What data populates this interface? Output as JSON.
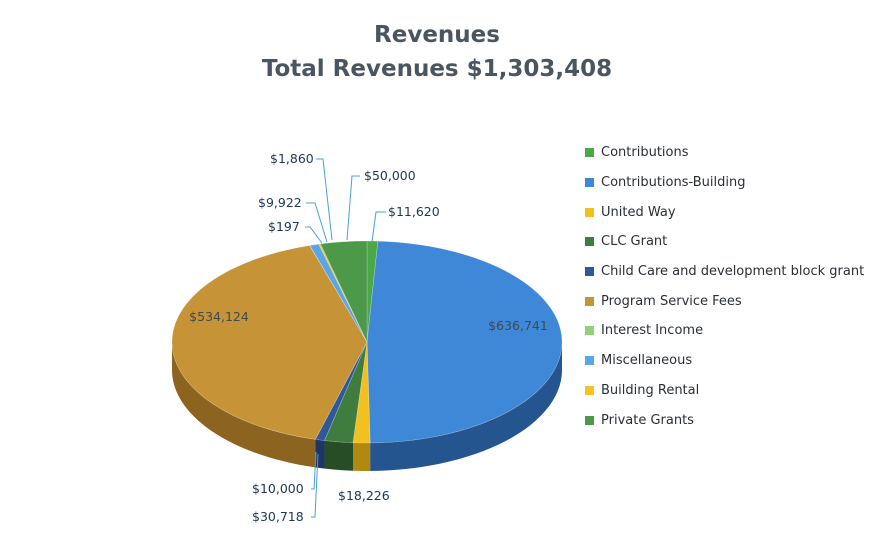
{
  "chart_data": {
    "type": "pie",
    "title": "Revenues",
    "subtitle": "Total Revenues $1,303,408",
    "legend_position": "right",
    "slices": [
      {
        "name": "Contributions",
        "value": 11620,
        "label": "$11,620",
        "color": "#4ca846",
        "side": "#2f7a2c"
      },
      {
        "name": "Contributions-Building",
        "value": 636741,
        "label": "$636,741",
        "color": "#3f88d8",
        "side": "#24558e"
      },
      {
        "name": "United Way",
        "value": 18226,
        "label": "$18,226",
        "color": "#f3c11f",
        "side": "#b08a10"
      },
      {
        "name": "CLC Grant",
        "value": 30718,
        "label": "$30,718",
        "color": "#3f7d3f",
        "side": "#264d26"
      },
      {
        "name": "Child Care and development block grant",
        "value": 10000,
        "label": "$10,000",
        "color": "#30579a",
        "side": "#1d3666"
      },
      {
        "name": "Program Service Fees",
        "value": 534124,
        "label": "$534,124",
        "color": "#c79337",
        "side": "#8c6420"
      },
      {
        "name": "Interest Income",
        "value": 197,
        "label": "$197",
        "color": "#8fd27a",
        "side": "#5f9a4f"
      },
      {
        "name": "Miscellaneous",
        "value": 9922,
        "label": "$9,922",
        "color": "#5aa5e6",
        "side": "#3a76aa"
      },
      {
        "name": "Building Rental",
        "value": 1860,
        "label": "$1,860",
        "color": "#f6c323",
        "side": "#b08a10"
      },
      {
        "name": "Private Grants",
        "value": 50000,
        "label": "$50,000",
        "color": "#4c9a49",
        "side": "#2f6a2d"
      }
    ]
  }
}
